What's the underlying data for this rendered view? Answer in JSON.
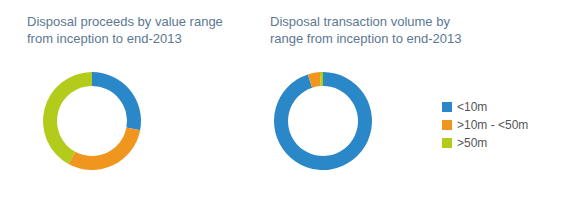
{
  "chart_data": [
    {
      "type": "pie",
      "title": "Disposal proceeds by value range\nfrom inception to end-2013",
      "categories": [
        "<10m",
        ">10m - <50m",
        ">50m"
      ],
      "values": [
        28,
        30,
        42
      ],
      "colors": [
        "#2a87c8",
        "#f0961e",
        "#b3cb1a"
      ]
    },
    {
      "type": "pie",
      "title": "Disposal transaction volume by\nrange from inception to end-2013",
      "categories": [
        "<10m",
        ">10m - <50m",
        ">50m"
      ],
      "values": [
        95,
        4,
        1
      ],
      "colors": [
        "#2a87c8",
        "#f0961e",
        "#b3cb1a"
      ],
      "legend": "right"
    }
  ]
}
